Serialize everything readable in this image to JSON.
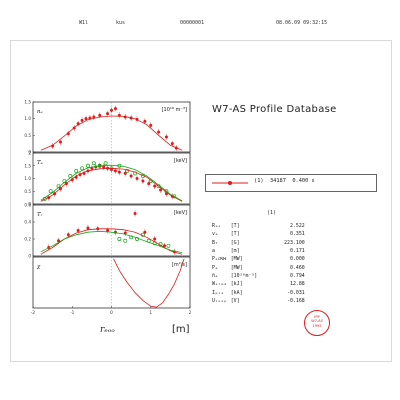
{
  "header": {
    "machine": "W1l",
    "user": "kus",
    "run_number": "00000001",
    "datetime": "08.06.09   09:32:15"
  },
  "title": "W7-AS   Profile Database",
  "legend": {
    "marker": "(1)",
    "shot": "34187",
    "time": "0.400 s"
  },
  "params": {
    "column_header": "(1)",
    "rows": [
      {
        "name": "Rₐₓ",
        "unit": "[T]",
        "value": "2.522"
      },
      {
        "name": "vₐ",
        "unit": "[T]",
        "value": "0.351"
      },
      {
        "name": "Bₜ",
        "unit": "[G]",
        "value": "223.100"
      },
      {
        "name": "a",
        "unit": "[m]",
        "value": "0.171"
      },
      {
        "name": "Pₑᴄʀʜ",
        "unit": "[MW]",
        "value": "0.000"
      },
      {
        "name": "Pₑ",
        "unit": "[MW]",
        "value": "0.460"
      },
      {
        "name": "n̄ₑ",
        "unit": "[10²⁰m⁻³]",
        "value": "0.794"
      },
      {
        "name": "Wₛᵢₘₘ",
        "unit": "[kJ]",
        "value": "12.88"
      },
      {
        "name": "Iₚₗₐ",
        "unit": "[kA]",
        "value": "-0.031"
      },
      {
        "name": "Uₗₒₒₚ",
        "unit": "[V]",
        "value": "-0.168"
      }
    ]
  },
  "stamp": [
    "IPP",
    "W7-AS",
    "1995"
  ],
  "chart_data": [
    {
      "type": "scatter",
      "ylabel": "nₑ",
      "unit_label": "[10¹⁹ m⁻³]",
      "ylim": [
        0,
        1.5
      ],
      "yticks": [
        "0",
        "0.5",
        "1.0",
        "1.5"
      ],
      "series": [
        {
          "color": "#e01b1b",
          "kind": "points",
          "x": [
            -1.5,
            -1.3,
            -1.1,
            -0.95,
            -0.85,
            -0.75,
            -0.65,
            -0.55,
            -0.45,
            -0.3,
            -0.1,
            0.0,
            0.1,
            0.2,
            0.35,
            0.5,
            0.65,
            0.85,
            1.0,
            1.2,
            1.4,
            1.55,
            1.65
          ],
          "y": [
            0.18,
            0.3,
            0.55,
            0.72,
            0.85,
            0.95,
            1.0,
            1.02,
            1.05,
            1.1,
            1.15,
            1.25,
            1.3,
            1.1,
            1.05,
            1.02,
            0.98,
            0.92,
            0.8,
            0.6,
            0.45,
            0.25,
            0.12
          ]
        },
        {
          "color": "#e01b1b",
          "kind": "line",
          "x": [
            -1.8,
            -1.5,
            -1.2,
            -0.9,
            -0.6,
            -0.3,
            0.0,
            0.3,
            0.6,
            0.9,
            1.2,
            1.5,
            1.8
          ],
          "y": [
            0.05,
            0.2,
            0.48,
            0.78,
            0.97,
            1.05,
            1.08,
            1.07,
            1.0,
            0.82,
            0.5,
            0.2,
            0.05
          ]
        }
      ]
    },
    {
      "type": "scatter",
      "ylabel": "Tₑ",
      "unit_label": "[keV]",
      "ylim": [
        0,
        2
      ],
      "yticks": [
        "0",
        "0.5",
        "1.0",
        "1.5",
        "2"
      ],
      "series": [
        {
          "color": "#e01b1b",
          "kind": "points",
          "x": [
            -1.6,
            -1.45,
            -1.3,
            -1.15,
            -1.0,
            -0.9,
            -0.8,
            -0.7,
            -0.6,
            -0.5,
            -0.4,
            -0.3,
            -0.2,
            -0.1,
            0.0,
            0.1,
            0.2,
            0.35,
            0.5,
            0.65,
            0.8,
            0.95,
            1.1,
            1.25,
            1.4,
            1.55
          ],
          "y": [
            0.25,
            0.4,
            0.6,
            0.8,
            0.95,
            1.05,
            1.15,
            1.2,
            1.3,
            1.4,
            1.45,
            1.5,
            1.45,
            1.4,
            1.35,
            1.3,
            1.25,
            1.2,
            1.1,
            1.0,
            0.9,
            0.8,
            0.7,
            0.55,
            0.4,
            0.3
          ]
        },
        {
          "color": "#18a818",
          "kind": "open",
          "x": [
            -1.7,
            -1.55,
            -1.35,
            -1.2,
            -1.05,
            -0.9,
            -0.75,
            -0.6,
            -0.45,
            -0.3,
            -0.15,
            0.0,
            0.2,
            0.4,
            0.6,
            0.8,
            1.0,
            1.2,
            1.4,
            1.6
          ],
          "y": [
            0.2,
            0.5,
            0.7,
            0.9,
            1.1,
            1.3,
            1.4,
            1.5,
            1.6,
            1.5,
            1.6,
            1.4,
            1.5,
            1.3,
            1.2,
            1.1,
            0.9,
            0.7,
            0.5,
            0.3
          ]
        },
        {
          "color": "#e01b1b",
          "kind": "line",
          "x": [
            -1.8,
            -1.5,
            -1.2,
            -0.9,
            -0.6,
            -0.3,
            0.0,
            0.3,
            0.6,
            0.9,
            1.2,
            1.5,
            1.8
          ],
          "y": [
            0.1,
            0.35,
            0.75,
            1.1,
            1.3,
            1.38,
            1.4,
            1.37,
            1.25,
            1.05,
            0.7,
            0.35,
            0.1
          ]
        },
        {
          "color": "#18a818",
          "kind": "line",
          "x": [
            -1.8,
            -1.5,
            -1.2,
            -0.9,
            -0.6,
            -0.3,
            0.0,
            0.3,
            0.6,
            0.9,
            1.2,
            1.5,
            1.8
          ],
          "y": [
            0.15,
            0.45,
            0.85,
            1.2,
            1.42,
            1.5,
            1.52,
            1.48,
            1.35,
            1.1,
            0.75,
            0.38,
            0.12
          ]
        }
      ]
    },
    {
      "type": "scatter",
      "ylabel": "Tᵢ",
      "unit_label": "[keV]",
      "ylim": [
        0,
        0.6
      ],
      "yticks": [
        "0",
        "0.2",
        "0.4",
        "0.6"
      ],
      "series": [
        {
          "color": "#e01b1b",
          "kind": "points",
          "x": [
            -1.6,
            -1.35,
            -1.1,
            -0.85,
            -0.6,
            -0.35,
            -0.1,
            0.1,
            0.35,
            0.6,
            0.85,
            1.1,
            1.35,
            1.6
          ],
          "y": [
            0.1,
            0.18,
            0.25,
            0.3,
            0.33,
            0.32,
            0.3,
            0.28,
            0.27,
            0.5,
            0.28,
            0.2,
            0.12,
            0.05
          ]
        },
        {
          "color": "#18a818",
          "kind": "open",
          "x": [
            0.2,
            0.35,
            0.5,
            0.65,
            0.8,
            0.95,
            1.1,
            1.25,
            1.45
          ],
          "y": [
            0.2,
            0.18,
            0.22,
            0.2,
            0.25,
            0.18,
            0.15,
            0.14,
            0.12
          ]
        },
        {
          "color": "#e01b1b",
          "kind": "line",
          "x": [
            -1.8,
            -1.5,
            -1.2,
            -0.9,
            -0.6,
            -0.3,
            0.0,
            0.3,
            0.6,
            0.9,
            1.2,
            1.5,
            1.8
          ],
          "y": [
            0.02,
            0.1,
            0.2,
            0.27,
            0.31,
            0.32,
            0.32,
            0.31,
            0.28,
            0.22,
            0.14,
            0.06,
            0.02
          ]
        },
        {
          "color": "#18a818",
          "kind": "line",
          "x": [
            -1.8,
            -1.5,
            -1.2,
            -0.9,
            -0.6,
            -0.3,
            0.0,
            0.3,
            0.6,
            0.9,
            1.2,
            1.5,
            1.8
          ],
          "y": [
            0.05,
            0.12,
            0.2,
            0.25,
            0.28,
            0.29,
            0.28,
            0.26,
            0.22,
            0.17,
            0.12,
            0.07,
            0.04
          ]
        }
      ]
    },
    {
      "type": "line",
      "ylabel": "χ",
      "unit_label": "[m²/s]",
      "xlabel": "rₑₒₒ",
      "xunit": "[m]",
      "ylim": [
        0,
        3
      ],
      "yticks": [],
      "xticks": [
        "-2",
        "-1",
        "0",
        "1",
        "2"
      ],
      "series": [
        {
          "color": "#e01b1b",
          "kind": "line",
          "x": [
            0.05,
            0.2,
            0.4,
            0.6,
            0.8,
            1.0,
            1.15,
            1.3,
            1.45,
            1.6,
            1.75,
            1.85
          ],
          "y": [
            2.9,
            2.2,
            1.5,
            0.9,
            0.45,
            0.1,
            0.05,
            0.3,
            0.8,
            1.4,
            2.2,
            2.9
          ]
        }
      ]
    }
  ]
}
